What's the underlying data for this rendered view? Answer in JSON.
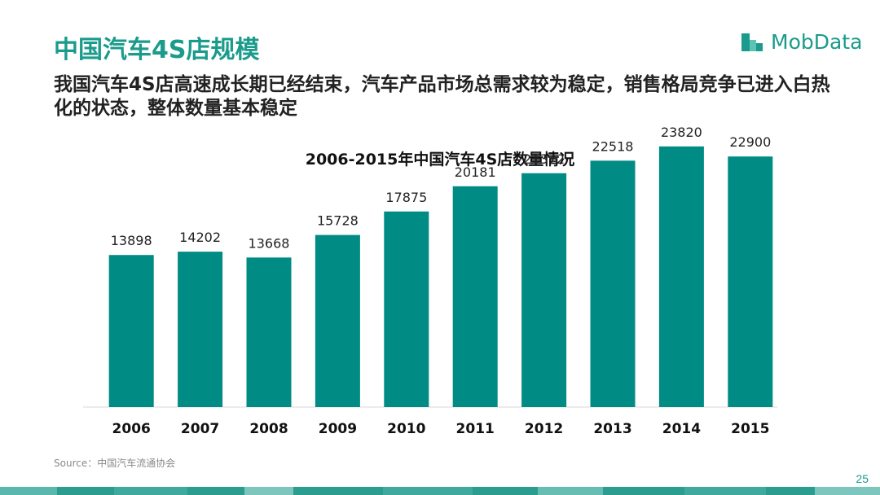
{
  "header": {
    "title": "中国汽车4S店规模",
    "subtitle": "我国汽车4S店高速成长期已经结束，汽车产品市场总需求较为稳定，销售格局竞争已进入白热化的状态，整体数量基本稳定"
  },
  "logo": {
    "text": "MobData",
    "icon": "building-bars-icon",
    "color": "#1a9b8b"
  },
  "chart_data": {
    "type": "bar",
    "title": "2006-2015年中国汽车4S店数量情况",
    "categories": [
      "2006",
      "2007",
      "2008",
      "2009",
      "2010",
      "2011",
      "2012",
      "2013",
      "2014",
      "2015"
    ],
    "values": [
      13898,
      14202,
      13668,
      15728,
      17875,
      20181,
      21372,
      22518,
      23820,
      22900
    ],
    "xlabel": "",
    "ylabel": "",
    "ylim": [
      0,
      25000
    ],
    "grid": false,
    "legend": "none",
    "bar_color": "#008b84"
  },
  "footer": {
    "source": "Source：中国汽车流通协会",
    "page_number": "25"
  },
  "colors": {
    "accent": "#1a9b8b",
    "bar": "#008b84"
  }
}
